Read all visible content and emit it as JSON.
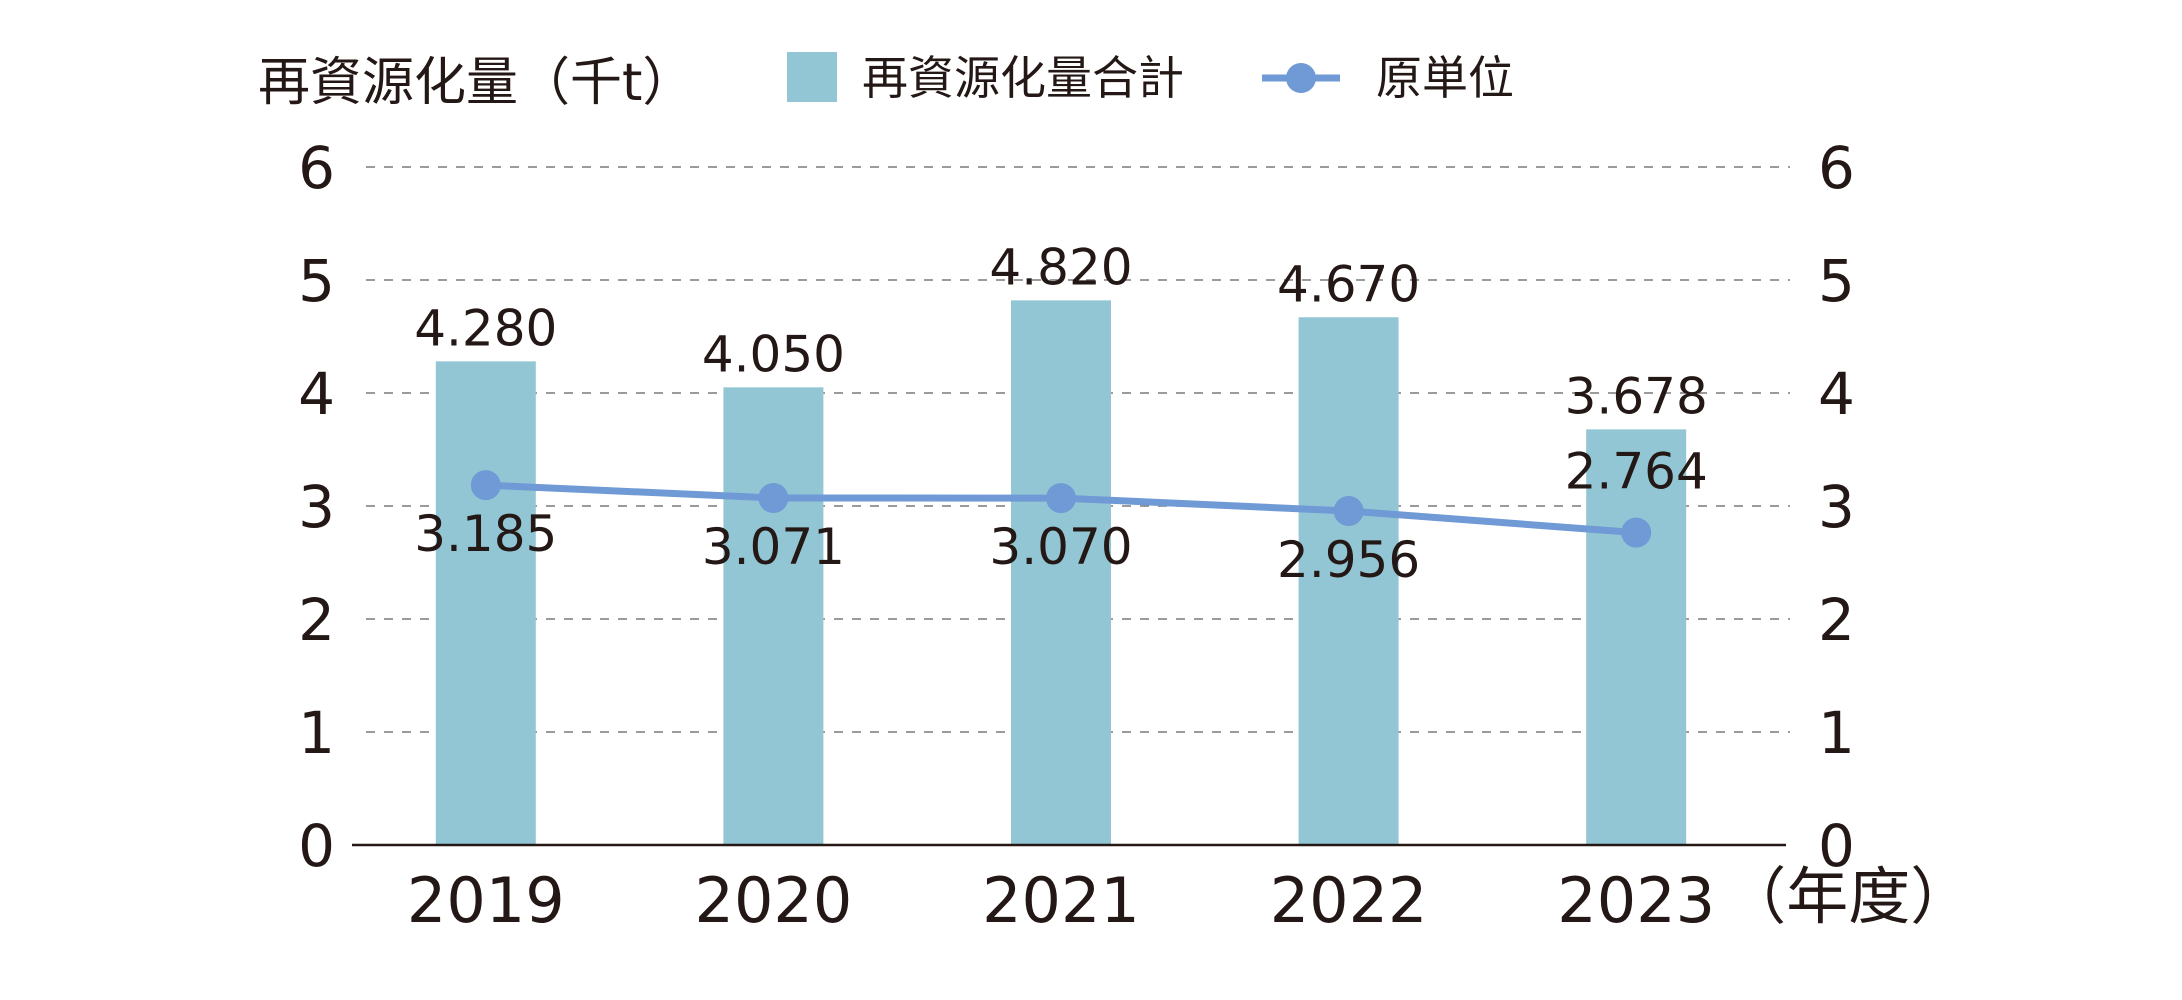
{
  "chart_data": {
    "type": "bar",
    "y_axis_label": "再資源化量（千t）",
    "x_unit_label": "（年度）",
    "categories": [
      "2019",
      "2020",
      "2021",
      "2022",
      "2023"
    ],
    "ylim": [
      0,
      6
    ],
    "yticks": [
      "0",
      "1",
      "2",
      "3",
      "4",
      "5",
      "6"
    ],
    "y2lim": [
      0,
      6
    ],
    "y2ticks": [
      "0",
      "1",
      "2",
      "3",
      "4",
      "5",
      "6"
    ],
    "grid": true,
    "legend_position": "top",
    "series": [
      {
        "name": "再資源化量合計",
        "type": "bar",
        "axis": "left",
        "color": "#93c6d4",
        "values": [
          4.28,
          4.05,
          4.82,
          4.67,
          3.678
        ],
        "labels": [
          "4.280",
          "4.050",
          "4.820",
          "4.670",
          "3.678"
        ]
      },
      {
        "name": "原単位",
        "type": "line",
        "axis": "right",
        "color": "#6f9ad6",
        "values": [
          3.185,
          3.071,
          3.07,
          2.956,
          2.764
        ],
        "labels": [
          "3.185",
          "3.071",
          "3.070",
          "2.956",
          "2.764"
        ]
      }
    ]
  }
}
